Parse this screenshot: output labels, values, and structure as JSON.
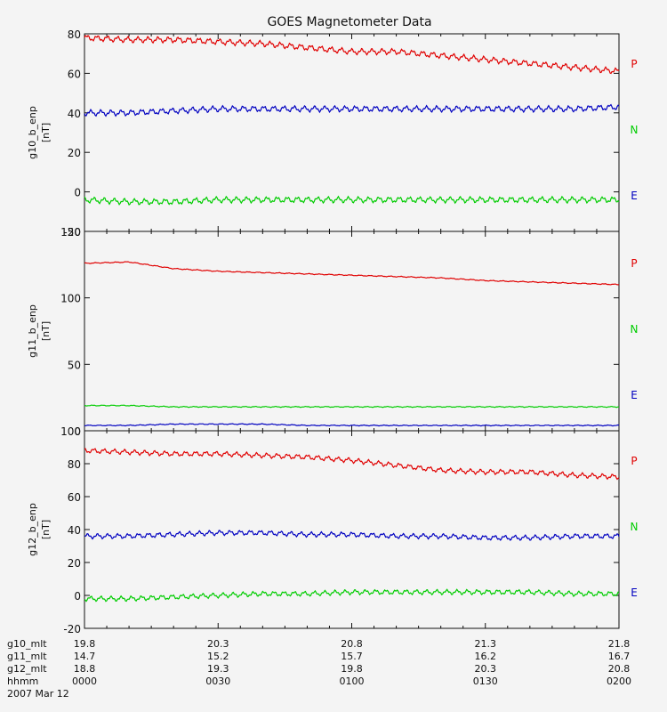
{
  "title": "GOES Magnetometer Data",
  "component_colors": {
    "P": "#e00000",
    "N": "#00cc00",
    "E": "#0000c0"
  },
  "legend_labels": [
    "P",
    "N",
    "E"
  ],
  "chart_data": [
    {
      "type": "line",
      "ylabel": "g10_b_enp",
      "yunit": "[nT]",
      "ylim": [
        -20,
        80
      ],
      "yticks": [
        "-20",
        "0",
        "20",
        "40",
        "60",
        "80"
      ],
      "ytick_values": [
        -20,
        0,
        20,
        40,
        60,
        80
      ],
      "series": [
        {
          "name": "P",
          "x": [
            0,
            10,
            20,
            30,
            40,
            50,
            60,
            70,
            80,
            90,
            100,
            110,
            120
          ],
          "values": [
            78,
            77,
            77,
            76,
            75,
            73,
            71,
            71,
            69,
            67,
            65,
            63,
            61
          ]
        },
        {
          "name": "N",
          "x": [
            0,
            10,
            20,
            30,
            40,
            50,
            60,
            70,
            80,
            90,
            100,
            110,
            120
          ],
          "values": [
            -4,
            -5,
            -5,
            -4,
            -4,
            -4,
            -4,
            -4,
            -4,
            -4,
            -4,
            -4,
            -4
          ]
        },
        {
          "name": "E",
          "x": [
            0,
            10,
            20,
            30,
            40,
            50,
            60,
            70,
            80,
            90,
            100,
            110,
            120
          ],
          "values": [
            40,
            40,
            41,
            42,
            42,
            42,
            42,
            42,
            42,
            42,
            42,
            42,
            43
          ]
        }
      ]
    },
    {
      "type": "line",
      "ylabel": "g11_b_enp",
      "yunit": "[nT]",
      "ylim": [
        0,
        150
      ],
      "yticks": [
        "0",
        "50",
        "100",
        "150"
      ],
      "ytick_values": [
        0,
        50,
        100,
        150
      ],
      "series": [
        {
          "name": "P",
          "x": [
            0,
            10,
            20,
            30,
            40,
            50,
            60,
            70,
            80,
            90,
            100,
            110,
            120
          ],
          "values": [
            126,
            127,
            122,
            120,
            119,
            118,
            117,
            116,
            115,
            113,
            112,
            111,
            110
          ]
        },
        {
          "name": "N",
          "x": [
            0,
            10,
            20,
            30,
            40,
            50,
            60,
            70,
            80,
            90,
            100,
            110,
            120
          ],
          "values": [
            19,
            19,
            18,
            18,
            18,
            18,
            18,
            18,
            18,
            18,
            18,
            18,
            18
          ]
        },
        {
          "name": "E",
          "x": [
            0,
            10,
            20,
            30,
            40,
            50,
            60,
            70,
            80,
            90,
            100,
            110,
            120
          ],
          "values": [
            4,
            4,
            5,
            5,
            5,
            4,
            4,
            4,
            4,
            4,
            4,
            4,
            4
          ]
        }
      ]
    },
    {
      "type": "line",
      "ylabel": "g12_b_enp",
      "yunit": "[nT]",
      "ylim": [
        -20,
        100
      ],
      "yticks": [
        "-20",
        "0",
        "20",
        "40",
        "60",
        "80",
        "100"
      ],
      "ytick_values": [
        -20,
        0,
        20,
        40,
        60,
        80,
        100
      ],
      "series": [
        {
          "name": "P",
          "x": [
            0,
            10,
            20,
            30,
            40,
            50,
            60,
            70,
            80,
            90,
            100,
            110,
            120
          ],
          "values": [
            88,
            87,
            86,
            86,
            85,
            84,
            82,
            79,
            76,
            75,
            75,
            73,
            72
          ]
        },
        {
          "name": "N",
          "x": [
            0,
            10,
            20,
            30,
            40,
            50,
            60,
            70,
            80,
            90,
            100,
            110,
            120
          ],
          "values": [
            -2,
            -2,
            -1,
            0,
            1,
            1,
            2,
            2,
            2,
            2,
            2,
            1,
            1
          ]
        },
        {
          "name": "E",
          "x": [
            0,
            10,
            20,
            30,
            40,
            50,
            60,
            70,
            80,
            90,
            100,
            110,
            120
          ],
          "values": [
            36,
            36,
            37,
            38,
            38,
            37,
            37,
            36,
            36,
            35,
            35,
            36,
            36
          ]
        }
      ]
    }
  ],
  "x_axis": {
    "xlim": [
      0,
      120
    ],
    "tick_positions": [
      0,
      30,
      60,
      90,
      120
    ],
    "rows": [
      {
        "label": "g10_mlt",
        "values": [
          "19.8",
          "20.3",
          "20.8",
          "21.3",
          "21.8"
        ]
      },
      {
        "label": "g11_mlt",
        "values": [
          "14.7",
          "15.2",
          "15.7",
          "16.2",
          "16.7"
        ]
      },
      {
        "label": "g12_mlt",
        "values": [
          "18.8",
          "19.3",
          "19.8",
          "20.3",
          "20.8"
        ]
      },
      {
        "label": "hhmm",
        "values": [
          "0000",
          "0030",
          "0100",
          "0130",
          "0200"
        ]
      }
    ],
    "date": "2007 Mar 12"
  }
}
